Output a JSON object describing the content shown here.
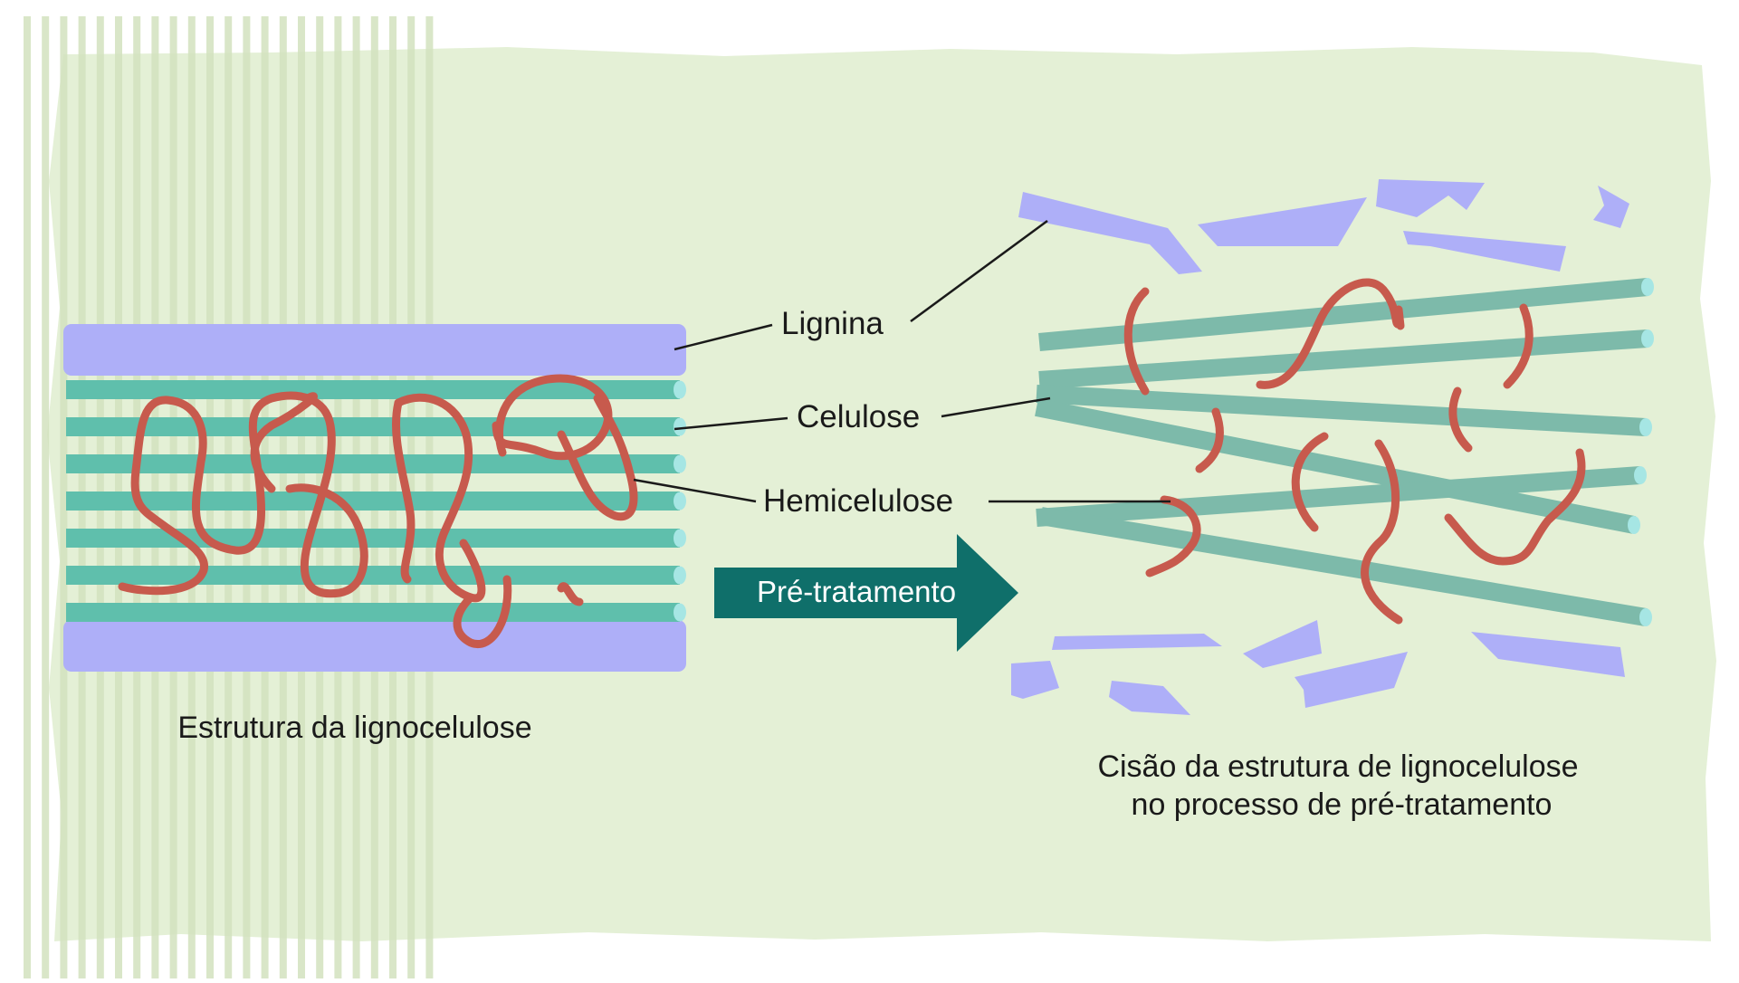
{
  "labels": {
    "lignin": "Lignina",
    "cellulose": "Celulose",
    "hemicellulose": "Hemicelulose"
  },
  "arrow": {
    "text": "Pré-tratamento"
  },
  "captions": {
    "left": "Estrutura da lignocelulose",
    "right_line1": "Cisão da estrutura de lignocelulose",
    "right_line2": "no processo de pré-tratamento"
  },
  "colors": {
    "background_sheet": "#e4f0d6",
    "stripes": "#d2e2be",
    "lignin": "#aeaff8",
    "cellulose": "#5fbfac",
    "cellulose_loose": "#7dbaaa",
    "cellulose_end": "#a6e6e4",
    "hemicellulose": "#c75a4d",
    "arrow": "#0f6f6a",
    "leader_lines": "#1a1a1a"
  }
}
